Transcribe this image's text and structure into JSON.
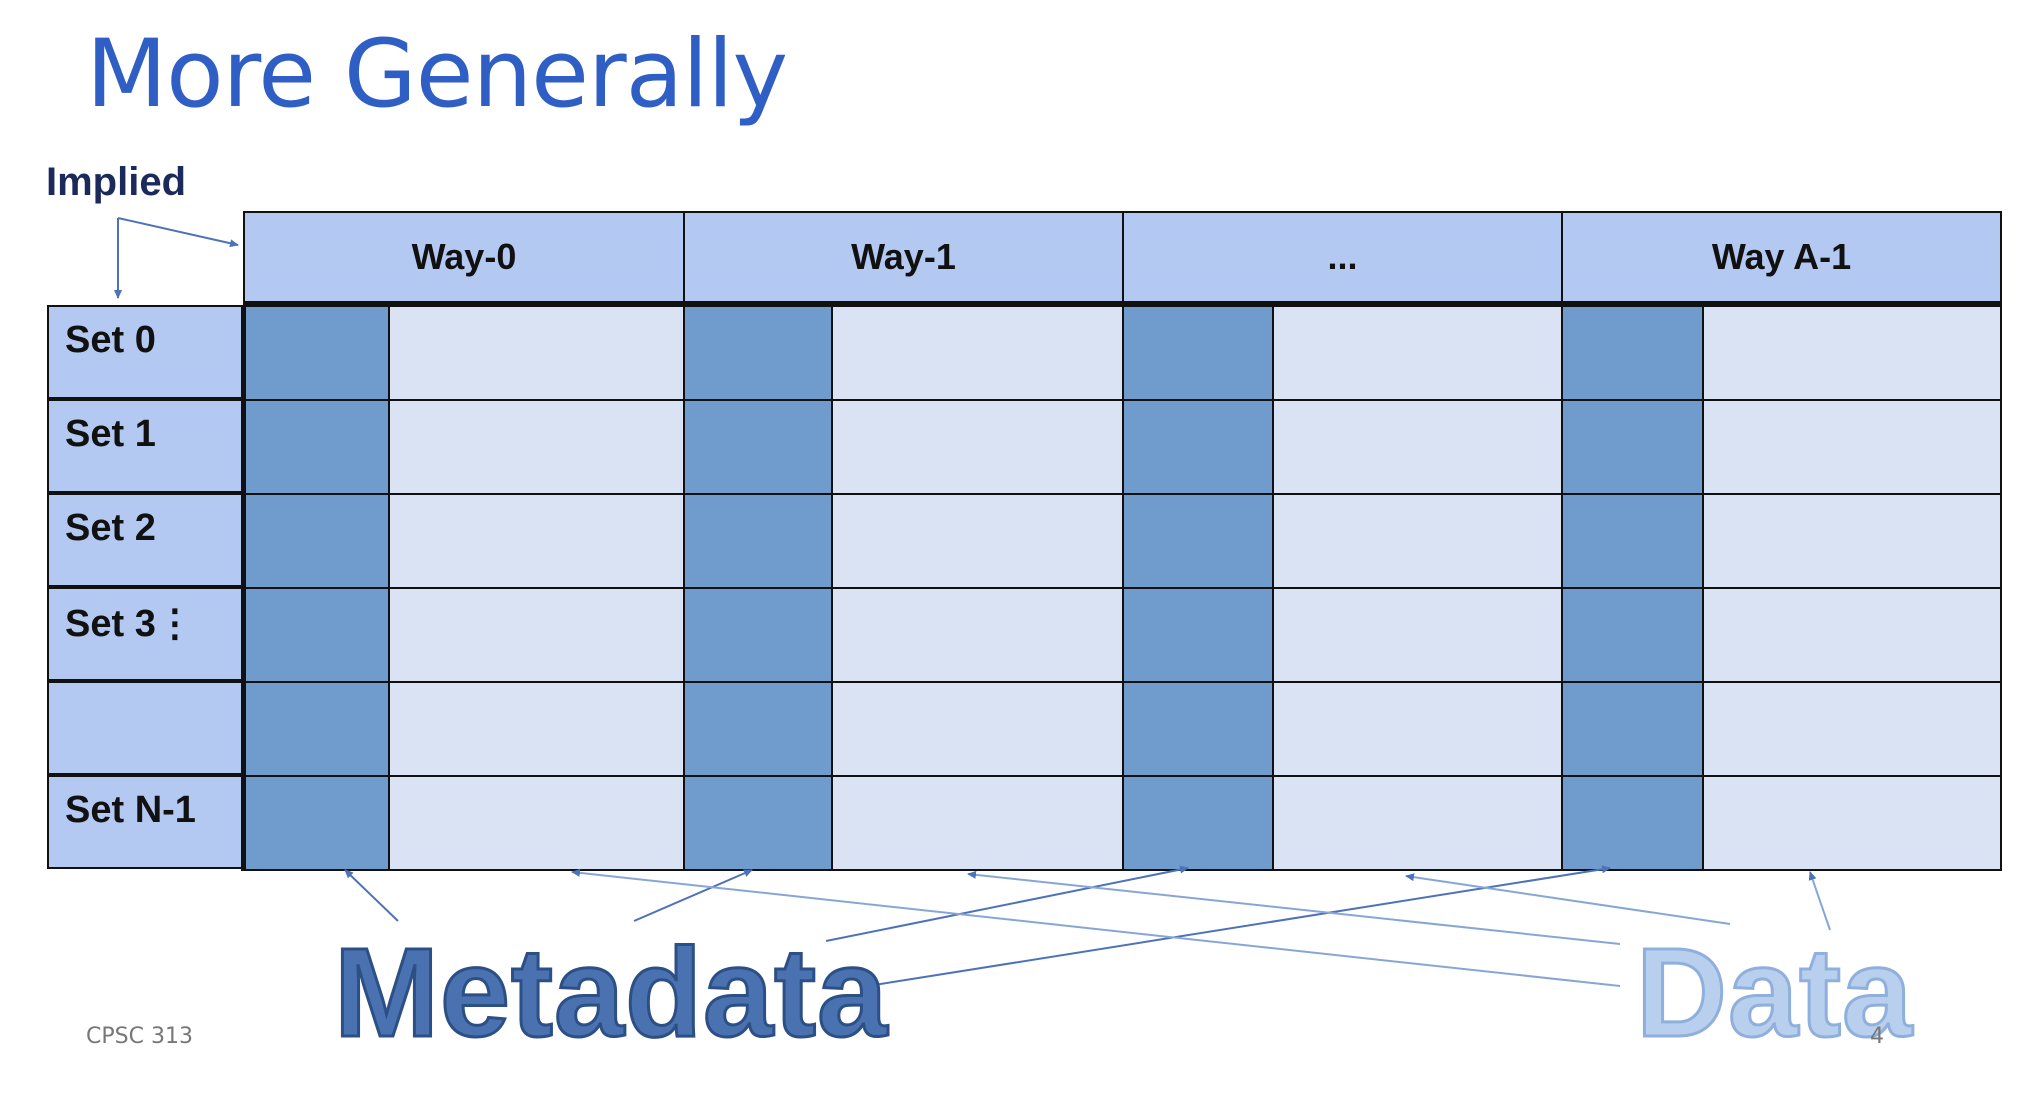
{
  "title": "More Generally",
  "implied_label": "Implied",
  "ways": [
    "Way-0",
    "Way-1",
    "...",
    "Way A-1"
  ],
  "sets": [
    "Set 0",
    "Set 1",
    "Set 2",
    "Set 3⋮",
    "",
    "Set N-1"
  ],
  "labels": {
    "metadata": "Metadata",
    "data": "Data"
  },
  "footer": {
    "course": "CPSC 313",
    "page_number": "4"
  },
  "colors": {
    "title": "#2f5fc4",
    "header_fill": "#b4c9f1",
    "metadata_cell": "#6f9ccc",
    "data_cell": "#d9e3f4",
    "metadata_text": "#4a72b0",
    "data_text": "#b9cfee"
  }
}
